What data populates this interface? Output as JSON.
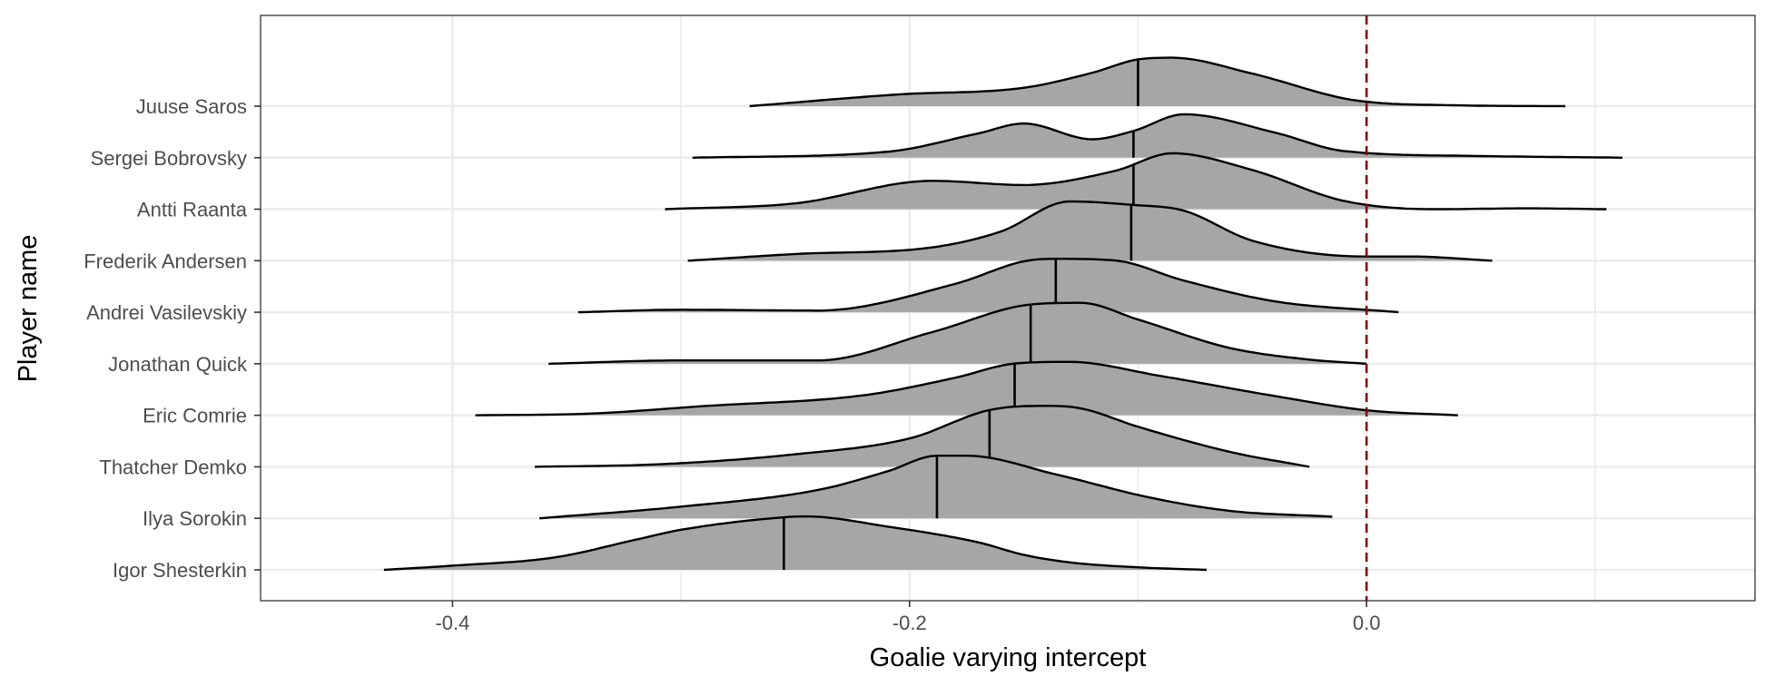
{
  "chart_data": {
    "type": "ridgeline",
    "xlabel": "Goalie varying intercept",
    "ylabel": "Player name",
    "xlim": [
      -0.484,
      0.17
    ],
    "x_ticks": [
      -0.4,
      -0.2,
      0.0
    ],
    "x_tick_labels": [
      "-0.4",
      "-0.2",
      "0.0"
    ],
    "grid": true,
    "reference_line": {
      "x": 0.0,
      "style": "dashed",
      "color": "#8b0000"
    },
    "fill_color": "#a6a6a6",
    "line_color": "#000000",
    "panel_border_color": "#333333",
    "grid_color": "#ebebeb",
    "categories": [
      "Igor Shesterkin",
      "Ilya Sorokin",
      "Thatcher Demko",
      "Eric Comrie",
      "Jonathan Quick",
      "Andrei Vasilevskiy",
      "Frederik Andersen",
      "Antti Raanta",
      "Sergei Bobrovsky",
      "Juuse Saros"
    ],
    "series": [
      {
        "name": "Igor Shesterkin",
        "median": -0.255,
        "range": [
          -0.43,
          -0.07
        ],
        "density": [
          [
            -0.43,
            0.0
          ],
          [
            -0.4,
            0.05
          ],
          [
            -0.355,
            0.15
          ],
          [
            -0.32,
            0.36
          ],
          [
            -0.3,
            0.48
          ],
          [
            -0.255,
            0.63
          ],
          [
            -0.245,
            0.64
          ],
          [
            -0.21,
            0.52
          ],
          [
            -0.17,
            0.33
          ],
          [
            -0.15,
            0.18
          ],
          [
            -0.13,
            0.09
          ],
          [
            -0.1,
            0.03
          ],
          [
            -0.07,
            0.0
          ]
        ]
      },
      {
        "name": "Ilya Sorokin",
        "median": -0.188,
        "range": [
          -0.362,
          -0.015
        ],
        "density": [
          [
            -0.362,
            0.0
          ],
          [
            -0.3,
            0.14
          ],
          [
            -0.24,
            0.34
          ],
          [
            -0.21,
            0.56
          ],
          [
            -0.188,
            0.75
          ],
          [
            -0.175,
            0.75
          ],
          [
            -0.135,
            0.52
          ],
          [
            -0.095,
            0.25
          ],
          [
            -0.06,
            0.09
          ],
          [
            -0.015,
            0.02
          ]
        ]
      },
      {
        "name": "Thatcher Demko",
        "median": -0.165,
        "range": [
          -0.364,
          -0.025
        ],
        "density": [
          [
            -0.364,
            0.0
          ],
          [
            -0.31,
            0.03
          ],
          [
            -0.25,
            0.15
          ],
          [
            -0.2,
            0.34
          ],
          [
            -0.165,
            0.68
          ],
          [
            -0.14,
            0.73
          ],
          [
            -0.125,
            0.7
          ],
          [
            -0.1,
            0.48
          ],
          [
            -0.06,
            0.18
          ],
          [
            -0.025,
            0.0
          ]
        ]
      },
      {
        "name": "Eric Comrie",
        "median": -0.154,
        "range": [
          -0.39,
          0.04
        ],
        "density": [
          [
            -0.39,
            0.0
          ],
          [
            -0.34,
            0.02
          ],
          [
            -0.29,
            0.11
          ],
          [
            -0.22,
            0.24
          ],
          [
            -0.18,
            0.45
          ],
          [
            -0.154,
            0.62
          ],
          [
            -0.13,
            0.64
          ],
          [
            -0.09,
            0.47
          ],
          [
            -0.04,
            0.23
          ],
          [
            0.0,
            0.06
          ],
          [
            0.04,
            0.0
          ]
        ]
      },
      {
        "name": "Jonathan Quick",
        "median": -0.147,
        "range": [
          -0.358,
          0.0
        ],
        "density": [
          [
            -0.358,
            0.0
          ],
          [
            -0.3,
            0.04
          ],
          [
            -0.24,
            0.04
          ],
          [
            -0.19,
            0.38
          ],
          [
            -0.147,
            0.71
          ],
          [
            -0.125,
            0.73
          ],
          [
            -0.1,
            0.53
          ],
          [
            -0.06,
            0.19
          ],
          [
            -0.025,
            0.05
          ],
          [
            0.0,
            0.0
          ]
        ]
      },
      {
        "name": "Andrei Vasilevskiy",
        "median": -0.136,
        "range": [
          -0.345,
          0.014
        ],
        "density": [
          [
            -0.345,
            0.0
          ],
          [
            -0.3,
            0.03
          ],
          [
            -0.24,
            0.02
          ],
          [
            -0.18,
            0.34
          ],
          [
            -0.15,
            0.61
          ],
          [
            -0.136,
            0.64
          ],
          [
            -0.11,
            0.62
          ],
          [
            -0.08,
            0.38
          ],
          [
            -0.04,
            0.13
          ],
          [
            0.014,
            0.0
          ]
        ]
      },
      {
        "name": "Frederik Andersen",
        "median": -0.103,
        "range": [
          -0.297,
          0.055
        ],
        "density": [
          [
            -0.297,
            0.0
          ],
          [
            -0.25,
            0.08
          ],
          [
            -0.19,
            0.16
          ],
          [
            -0.16,
            0.35
          ],
          [
            -0.13,
            0.71
          ],
          [
            -0.103,
            0.67
          ],
          [
            -0.08,
            0.6
          ],
          [
            -0.05,
            0.24
          ],
          [
            0.0,
            0.05
          ],
          [
            0.02,
            0.05
          ],
          [
            0.055,
            0.0
          ]
        ]
      },
      {
        "name": "Antti Raanta",
        "median": -0.102,
        "range": [
          -0.307,
          0.105
        ],
        "density": [
          [
            -0.307,
            0.0
          ],
          [
            -0.25,
            0.07
          ],
          [
            -0.19,
            0.34
          ],
          [
            -0.15,
            0.29
          ],
          [
            -0.11,
            0.46
          ],
          [
            -0.085,
            0.67
          ],
          [
            -0.05,
            0.47
          ],
          [
            -0.01,
            0.1
          ],
          [
            0.03,
            0.0
          ],
          [
            0.07,
            0.01
          ],
          [
            0.105,
            0.0
          ]
        ]
      },
      {
        "name": "Sergei Bobrovsky",
        "median": -0.102,
        "range": [
          -0.295,
          0.112
        ],
        "density": [
          [
            -0.295,
            0.0
          ],
          [
            -0.21,
            0.07
          ],
          [
            -0.17,
            0.29
          ],
          [
            -0.15,
            0.41
          ],
          [
            -0.12,
            0.22
          ],
          [
            -0.102,
            0.32
          ],
          [
            -0.08,
            0.52
          ],
          [
            -0.04,
            0.3
          ],
          [
            -0.01,
            0.08
          ],
          [
            0.05,
            0.02
          ],
          [
            0.112,
            0.0
          ]
        ]
      },
      {
        "name": "Juuse Saros",
        "median": -0.1,
        "range": [
          -0.27,
          0.087
        ],
        "density": [
          [
            -0.27,
            0.0
          ],
          [
            -0.205,
            0.14
          ],
          [
            -0.15,
            0.22
          ],
          [
            -0.12,
            0.4
          ],
          [
            -0.1,
            0.56
          ],
          [
            -0.085,
            0.58
          ],
          [
            -0.05,
            0.39
          ],
          [
            -0.005,
            0.07
          ],
          [
            0.04,
            0.01
          ],
          [
            0.087,
            0.0
          ]
        ]
      }
    ]
  }
}
